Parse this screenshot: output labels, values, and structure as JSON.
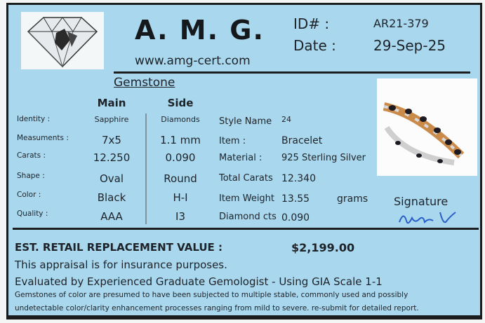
{
  "header": {
    "brand": "A. M. G.",
    "website": "www.amg-cert.com",
    "id_label": "ID# :",
    "id_value": "AR21-379",
    "date_label": "Date :",
    "date_value": "29-Sep-25"
  },
  "gemstone": {
    "title": "Gemstone",
    "main_header": "Main",
    "side_header": "Side",
    "rows": [
      {
        "label": "Identity :",
        "main": "Sapphire",
        "side": "Diamonds"
      },
      {
        "label": "Measuments :",
        "main": "7x5",
        "side": "1.1 mm"
      },
      {
        "label": "Carats :",
        "main": "12.250",
        "side": "0.090"
      },
      {
        "label": "Shape :",
        "main": "Oval",
        "side": "Round"
      },
      {
        "label": "Color :",
        "main": "Black",
        "side": "H-I"
      },
      {
        "label": "Quality :",
        "main": "AAA",
        "side": "I3"
      }
    ]
  },
  "item": {
    "rows": [
      {
        "label": "Style Name",
        "value": "24"
      },
      {
        "label": "Item :",
        "value": "Bracelet"
      },
      {
        "label": "Material :",
        "value": "925 Sterling Silver"
      },
      {
        "label": "Total Carats",
        "value": "12.340"
      },
      {
        "label": "Item Weight",
        "value": "13.55",
        "unit": "grams"
      },
      {
        "label": "Diamond cts",
        "value": "0.090"
      }
    ]
  },
  "signature": {
    "label": "Signature"
  },
  "footer": {
    "value_label": "EST. RETAIL REPLACEMENT VALUE :",
    "value": "$2,199.00",
    "line1": "This appraisal is for insurance purposes.",
    "line2": "Evaluated by Experienced Graduate Gemologist - Using GIA Scale 1-1",
    "disclaimer1": "Gemstones of color are presumed to have been subjected to multiple stable, commonly used and possibly",
    "disclaimer2": "undetectable color/clarity enhancement processes ranging from mild to severe. re-submit for detailed report."
  },
  "colors": {
    "card": "#a9d7ee",
    "border": "#1a1c1e",
    "signature_ink": "#2a5fc4"
  }
}
